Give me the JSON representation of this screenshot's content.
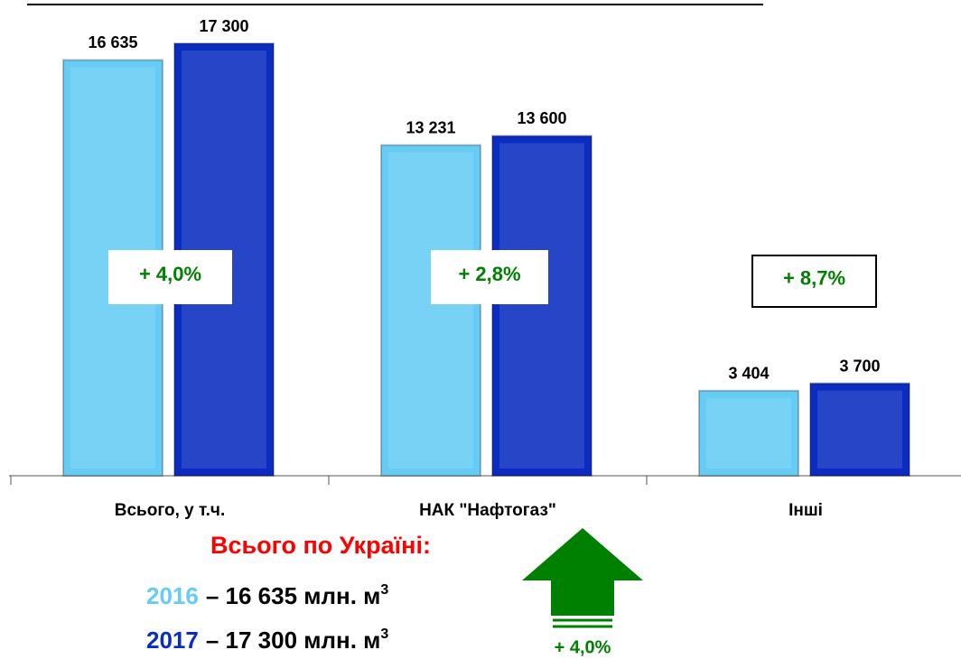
{
  "chart_data": {
    "type": "bar",
    "categories": [
      "Всього, у т.ч.",
      "НАК \"Нафтогаз\"",
      "Інші"
    ],
    "series": [
      {
        "name": "2016",
        "color": "#66ccf5",
        "values": [
          16635,
          13231,
          3404
        ],
        "value_labels": [
          "16 635",
          "13 231",
          "3 404"
        ]
      },
      {
        "name": "2017",
        "color": "#0a2cc0",
        "values": [
          17300,
          13600,
          3700
        ],
        "value_labels": [
          "17 300",
          "13 600",
          "3 700"
        ]
      }
    ],
    "ylim": [
      0,
      19000
    ],
    "annotations": [
      "+ 4,0%",
      "+ 2,8%",
      "+ 8,7%"
    ],
    "summary": {
      "title": "Всього по Україні:",
      "lines": [
        {
          "text": "– 16 635 млн. м",
          "sup": "3"
        },
        {
          "text": "– 17 300 млн. м",
          "sup": "3"
        }
      ]
    },
    "arrow_label": "+ 4,0%"
  }
}
